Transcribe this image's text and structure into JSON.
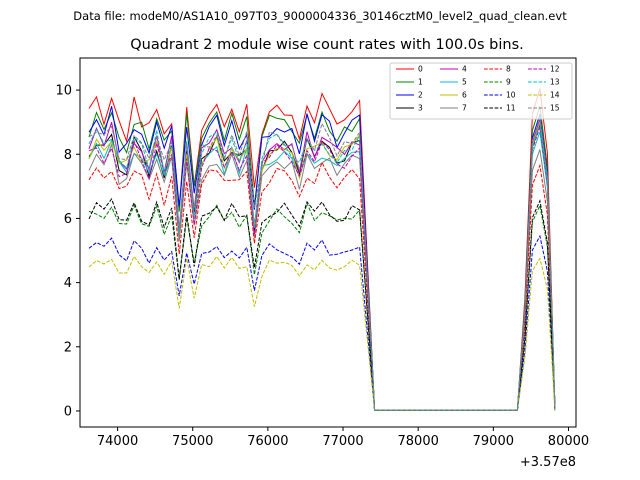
{
  "chart_data": {
    "type": "line",
    "suptitle": "Data file: modeM0/AS1A10_097T03_9000004336_30146cztM0_level2_quad_clean.evt",
    "title": "Quadrant 2 module wise count rates with 100.0s bins.",
    "xlabel": "",
    "ylabel": "",
    "x_offset_label": "+3.57e8",
    "xlim": [
      73500,
      80100
    ],
    "ylim": [
      -0.5,
      11.0
    ],
    "xticks": [
      74000,
      75000,
      76000,
      77000,
      78000,
      79000,
      80000
    ],
    "yticks": [
      0,
      2,
      4,
      6,
      8,
      10
    ],
    "legend_position": "upper right",
    "segments": [
      {
        "x_start": 73620,
        "x_end": 77220,
        "step": 100
      },
      {
        "gap": [
          77220,
          77420
        ]
      },
      {
        "x_start": 77420,
        "x_end": 79320,
        "step": 100,
        "value": 0.02
      },
      {
        "x_start": 79320,
        "x_end": 79820,
        "step": 100
      }
    ],
    "series": [
      {
        "name": "0",
        "color": "#ff0000",
        "style": "solid",
        "level": 9.05,
        "burst": 10.05
      },
      {
        "name": "1",
        "color": "#008000",
        "style": "solid",
        "level": 8.7,
        "burst": 9.5
      },
      {
        "name": "2",
        "color": "#0000ff",
        "style": "solid",
        "level": 8.55,
        "burst": 9.25
      },
      {
        "name": "3",
        "color": "#000000",
        "style": "solid",
        "level": 7.9,
        "burst": 8.95
      },
      {
        "name": "4",
        "color": "#bf00bf",
        "style": "solid",
        "level": 8.1,
        "burst": 9.1
      },
      {
        "name": "5",
        "color": "#00bfbf",
        "style": "solid",
        "level": 7.7,
        "burst": 8.7
      },
      {
        "name": "6",
        "color": "#bfbf00",
        "style": "solid",
        "level": 7.95,
        "burst": 9.0
      },
      {
        "name": "7",
        "color": "#808080",
        "style": "solid",
        "level": 7.5,
        "burst": 8.15
      },
      {
        "name": "8",
        "color": "#ff0000",
        "style": "dashed",
        "level": 7.1,
        "burst": 7.65
      },
      {
        "name": "9",
        "color": "#008000",
        "style": "dashed",
        "level": 5.95,
        "burst": 6.4
      },
      {
        "name": "10",
        "color": "#0000ff",
        "style": "dashed",
        "level": 4.9,
        "burst": 5.45
      },
      {
        "name": "11",
        "color": "#000000",
        "style": "dashed",
        "level": 6.05,
        "burst": 6.55
      },
      {
        "name": "12",
        "color": "#bf00bf",
        "style": "dashed",
        "level": 7.75,
        "burst": 8.85
      },
      {
        "name": "13",
        "color": "#00bfbf",
        "style": "dashed",
        "level": 8.05,
        "burst": 8.95
      },
      {
        "name": "14",
        "color": "#bfbf00",
        "style": "dashed",
        "level": 4.45,
        "burst": 4.75
      },
      {
        "name": "15",
        "color": "#808080",
        "style": "dashed",
        "level": 8.2,
        "burst": 9.15
      }
    ]
  }
}
